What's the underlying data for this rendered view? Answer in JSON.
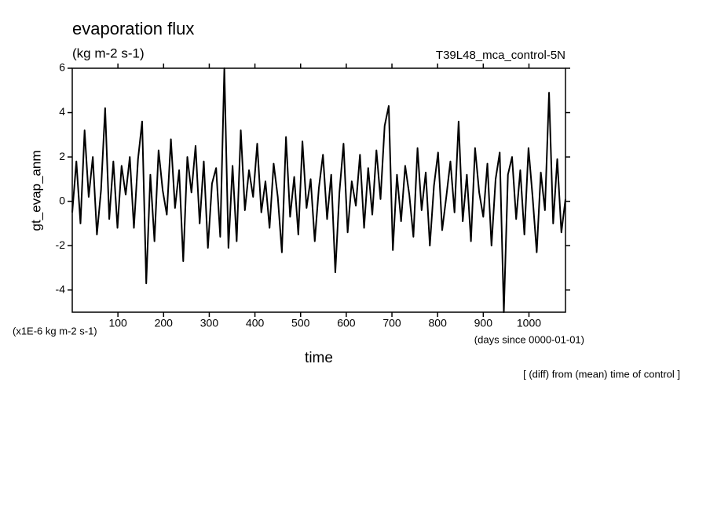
{
  "chart_data": {
    "type": "line",
    "title": "evaporation flux",
    "subtitle": "(kg m-2 s-1)",
    "annotation_right": "T39L48_mca_control-5N",
    "ylabel": "gt_evap_anm",
    "yunits": "(x1E-6 kg m-2 s-1)",
    "xlabel": "time",
    "xunits": "(days since 0000-01-01)",
    "note": "[ (diff) from (mean) time of control ]",
    "xlim": [
      0,
      1080
    ],
    "xticks": [
      100,
      200,
      300,
      400,
      500,
      600,
      700,
      800,
      900,
      1000
    ],
    "ylim": [
      -5,
      6
    ],
    "yticks": [
      -4,
      -2,
      0,
      2,
      4,
      6
    ],
    "series": [
      {
        "name": "gt_evap_anm",
        "color": "#000000",
        "x": [
          0,
          9,
          18,
          27,
          36,
          45,
          54,
          63,
          72,
          81,
          90,
          99,
          108,
          117,
          126,
          135,
          144,
          153,
          162,
          171,
          180,
          189,
          198,
          207,
          216,
          225,
          234,
          243,
          252,
          261,
          270,
          279,
          288,
          297,
          306,
          315,
          324,
          333,
          342,
          351,
          360,
          369,
          378,
          387,
          396,
          405,
          414,
          423,
          432,
          441,
          450,
          459,
          468,
          477,
          486,
          495,
          504,
          513,
          522,
          531,
          540,
          549,
          558,
          567,
          576,
          585,
          594,
          603,
          612,
          621,
          630,
          639,
          648,
          657,
          666,
          675,
          684,
          693,
          702,
          711,
          720,
          729,
          738,
          747,
          756,
          765,
          774,
          783,
          792,
          801,
          810,
          819,
          828,
          837,
          846,
          855,
          864,
          873,
          882,
          891,
          900,
          909,
          918,
          927,
          936,
          945,
          954,
          963,
          972,
          981,
          990,
          999,
          1008,
          1017,
          1026,
          1035,
          1044,
          1053,
          1062,
          1071,
          1080
        ],
        "values": [
          -0.5,
          1.8,
          -1,
          3.2,
          0.2,
          2.0,
          -1.5,
          0.5,
          4.2,
          -0.8,
          1.8,
          -1.2,
          1.6,
          0.3,
          2.0,
          -1.2,
          1.9,
          3.6,
          -3.7,
          1.2,
          -1.8,
          2.3,
          0.5,
          -0.6,
          2.8,
          -0.3,
          1.4,
          -2.7,
          2.0,
          0.4,
          2.5,
          -1.0,
          1.8,
          -2.1,
          0.8,
          1.5,
          -1.6,
          6.0,
          -2.1,
          1.6,
          -1.8,
          3.2,
          -0.4,
          1.4,
          0.2,
          2.6,
          -0.5,
          0.9,
          -1.2,
          1.7,
          0.2,
          -2.3,
          2.9,
          -0.7,
          1.1,
          -1.5,
          2.7,
          -0.3,
          1.0,
          -1.8,
          0.6,
          2.1,
          -0.8,
          1.2,
          -3.2,
          0.4,
          2.6,
          -1.4,
          0.9,
          -0.2,
          2.1,
          -1.2,
          1.5,
          -0.6,
          2.3,
          0.1,
          3.4,
          4.3,
          -2.2,
          1.2,
          -0.9,
          1.6,
          0.3,
          -1.6,
          2.4,
          -0.4,
          1.3,
          -2.0,
          0.7,
          2.2,
          -1.3,
          0.2,
          1.8,
          -0.5,
          3.6,
          -0.9,
          1.2,
          -1.8,
          2.4,
          0.4,
          -0.7,
          1.7,
          -2.0,
          1.0,
          2.2,
          -5.0,
          1.2,
          2.0,
          -0.8,
          1.4,
          -1.5,
          2.4,
          0.2,
          -2.3,
          1.3,
          -0.4,
          4.9,
          -1.0,
          1.9,
          -1.4,
          0.1
        ]
      }
    ]
  }
}
